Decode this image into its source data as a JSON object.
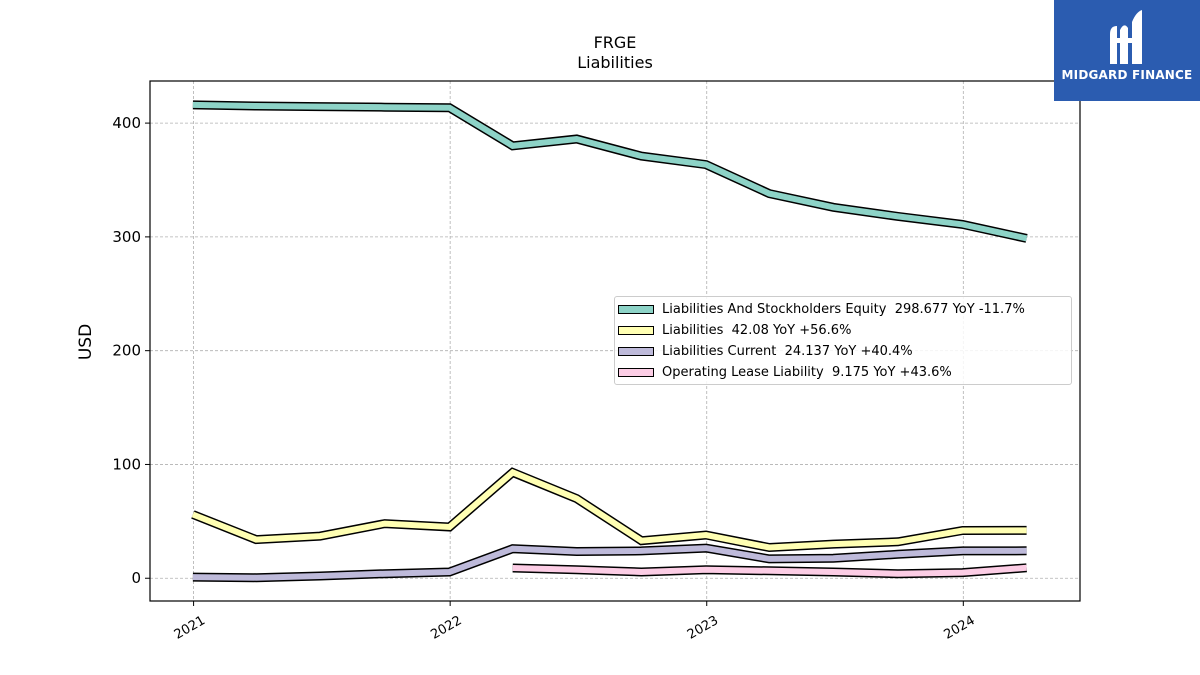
{
  "logo": {
    "text": "MIDGARD FINANCE",
    "color": "#2b5cb0"
  },
  "chart_data": {
    "type": "line",
    "title": "FRGE",
    "subtitle": "Liabilities",
    "ylabel": "USD",
    "xlabel": "",
    "ylim": [
      -20,
      437
    ],
    "yticks": [
      0,
      100,
      200,
      300,
      400
    ],
    "xlim": [
      "2020-10-31",
      "2024-06-15"
    ],
    "xticks": [
      "2021",
      "2022",
      "2023",
      "2024"
    ],
    "grid": true,
    "legend_position": "center-right",
    "series": [
      {
        "name": "Liabilities And Stockholders Equity",
        "legend": "Liabilities And Stockholders Equity  298.677 YoY -11.7%",
        "color": "#8dd3c7",
        "x": [
          "2020-12-31",
          "2021-03-31",
          "2021-06-30",
          "2021-09-30",
          "2021-12-31",
          "2022-03-31",
          "2022-06-30",
          "2022-09-30",
          "2022-12-31",
          "2023-03-31",
          "2023-06-30",
          "2023-09-30",
          "2023-12-31",
          "2024-03-31"
        ],
        "values": [
          416,
          415,
          414.5,
          414,
          413.5,
          380,
          386,
          371,
          363.5,
          338,
          326,
          318,
          311,
          298.677
        ]
      },
      {
        "name": "Liabilities",
        "legend": "Liabilities  42.08 YoY +56.6%",
        "color": "#ffffb3",
        "x": [
          "2020-12-31",
          "2021-03-31",
          "2021-06-30",
          "2021-09-30",
          "2021-12-31",
          "2022-03-31",
          "2022-06-30",
          "2022-09-30",
          "2022-12-31",
          "2023-03-31",
          "2023-06-30",
          "2023-09-30",
          "2023-12-31",
          "2024-03-31"
        ],
        "values": [
          56,
          34,
          37,
          48,
          45,
          93,
          70,
          33,
          38,
          27,
          30,
          32,
          42,
          42.08
        ]
      },
      {
        "name": "Liabilities Current",
        "legend": "Liabilities Current  24.137 YoY +40.4%",
        "color": "#bebada",
        "x": [
          "2020-12-31",
          "2021-03-31",
          "2021-06-30",
          "2021-09-30",
          "2021-12-31",
          "2022-03-31",
          "2022-06-30",
          "2022-09-30",
          "2022-12-31",
          "2023-03-31",
          "2023-06-30",
          "2023-09-30",
          "2023-12-31",
          "2024-03-31"
        ],
        "values": [
          1,
          0.5,
          2,
          4,
          5.5,
          26,
          23.5,
          24,
          26.5,
          17,
          17.5,
          21,
          24,
          24.137
        ]
      },
      {
        "name": "Operating Lease Liability",
        "legend": "Operating Lease Liability  9.175 YoY +43.6%",
        "color": "#fccde5",
        "x": [
          "2022-03-31",
          "2022-06-30",
          "2022-09-30",
          "2022-12-31",
          "2023-03-31",
          "2023-06-30",
          "2023-09-30",
          "2023-12-31",
          "2024-03-31"
        ],
        "values": [
          9,
          7.5,
          5.5,
          7.5,
          6.5,
          5.5,
          4,
          5,
          9.175
        ]
      }
    ]
  }
}
